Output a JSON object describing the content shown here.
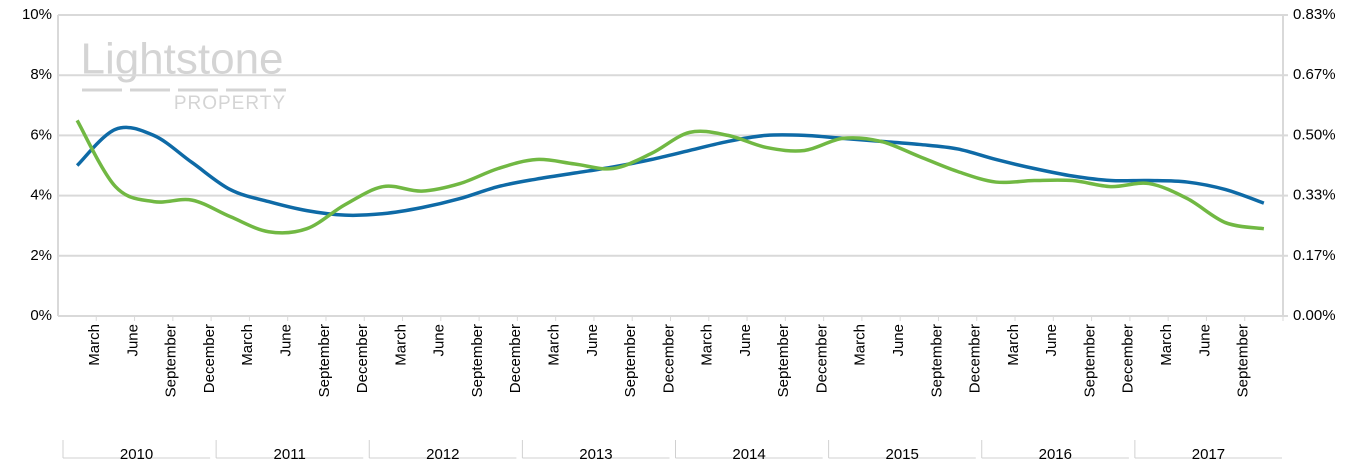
{
  "chart_data": {
    "type": "line",
    "watermark": {
      "title": "Lightstone",
      "subtitle": "PROPERTY"
    },
    "categories": [
      "March",
      "June",
      "September",
      "December",
      "March",
      "June",
      "September",
      "December",
      "March",
      "June",
      "September",
      "December",
      "March",
      "June",
      "September",
      "December",
      "March",
      "June",
      "September",
      "December",
      "March",
      "June",
      "September",
      "December",
      "March",
      "June",
      "September",
      "December",
      "March",
      "June",
      "September",
      null
    ],
    "years": [
      "2010",
      "2011",
      "2012",
      "2013",
      "2014",
      "2015",
      "2016",
      "2017"
    ],
    "series": [
      {
        "color": "#0e6aa6",
        "values": [
          5.0,
          6.2,
          6.0,
          5.1,
          4.2,
          3.8,
          3.5,
          3.35,
          3.4,
          3.6,
          3.9,
          4.3,
          4.55,
          4.75,
          4.95,
          5.2,
          5.5,
          5.8,
          6.0,
          6.0,
          5.9,
          5.8,
          5.7,
          5.55,
          5.2,
          4.9,
          4.65,
          4.5,
          4.5,
          4.45,
          4.2,
          3.75
        ]
      },
      {
        "color": "#71b843",
        "values": [
          6.5,
          4.3,
          3.8,
          3.85,
          3.3,
          2.8,
          2.9,
          3.7,
          4.3,
          4.15,
          4.4,
          4.9,
          5.2,
          5.05,
          4.9,
          5.4,
          6.1,
          6.0,
          5.6,
          5.5,
          5.9,
          5.8,
          5.3,
          4.8,
          4.45,
          4.5,
          4.5,
          4.3,
          4.4,
          3.9,
          3.1,
          2.9
        ]
      }
    ],
    "ylim": [
      0,
      10
    ],
    "yticks": [
      {
        "value": 0,
        "label": "0%"
      },
      {
        "value": 2,
        "label": "2%"
      },
      {
        "value": 4,
        "label": "4%"
      },
      {
        "value": 6,
        "label": "6%"
      },
      {
        "value": 8,
        "label": "8%"
      },
      {
        "value": 10,
        "label": "10%"
      }
    ],
    "y2lim": [
      0,
      0.8333
    ],
    "y2ticks": [
      {
        "value": 0,
        "label": "0.00%"
      },
      {
        "value": 0.1667,
        "label": "0.17%"
      },
      {
        "value": 0.3333,
        "label": "0.33%"
      },
      {
        "value": 0.5,
        "label": "0.50%"
      },
      {
        "value": 0.6667,
        "label": "0.67%"
      },
      {
        "value": 0.8333,
        "label": "0.83%"
      }
    ],
    "grid": true
  }
}
